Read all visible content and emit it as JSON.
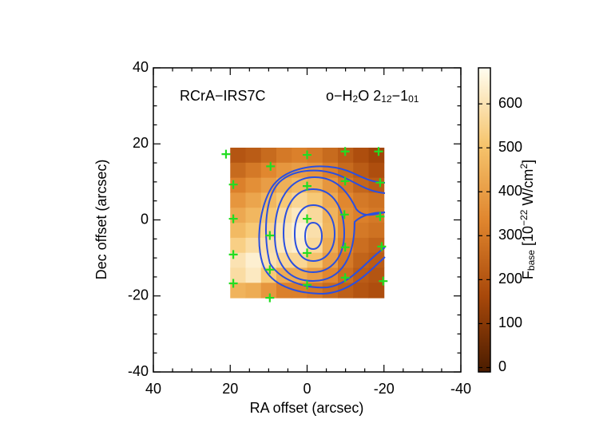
{
  "chart_data": {
    "type": "heatmap",
    "xlabel": "RA offset (arcsec)",
    "ylabel": "Dec offset (arcsec)",
    "source_label": "RCrA−IRS7C",
    "line_label_parts": [
      "o−H",
      "2",
      "O 2",
      "12",
      "−1",
      "01"
    ],
    "colorbar_label_parts": [
      "F",
      "base",
      " [10",
      "−22",
      " W/cm",
      "2",
      "]"
    ],
    "xlim": [
      40,
      -40
    ],
    "ylim": [
      -40,
      40
    ],
    "xticks": [
      40,
      20,
      0,
      -20,
      -40
    ],
    "yticks": [
      -40,
      -20,
      0,
      20,
      40
    ],
    "x_extent": [
      20,
      -20
    ],
    "y_extent": [
      19,
      -20.5
    ],
    "z": [
      [
        200,
        220,
        260,
        300,
        320,
        300,
        260,
        220,
        180,
        150
      ],
      [
        260,
        300,
        340,
        380,
        400,
        380,
        320,
        260,
        220,
        180
      ],
      [
        320,
        360,
        400,
        450,
        480,
        450,
        380,
        300,
        250,
        220
      ],
      [
        380,
        420,
        470,
        520,
        560,
        520,
        430,
        340,
        300,
        280
      ],
      [
        430,
        470,
        520,
        580,
        620,
        570,
        460,
        360,
        320,
        300
      ],
      [
        480,
        520,
        560,
        610,
        650,
        590,
        470,
        360,
        300,
        280
      ],
      [
        540,
        580,
        590,
        620,
        640,
        570,
        440,
        330,
        270,
        240
      ],
      [
        600,
        640,
        600,
        560,
        560,
        500,
        400,
        300,
        240,
        220
      ],
      [
        580,
        620,
        520,
        440,
        440,
        400,
        340,
        270,
        220,
        200
      ],
      [
        460,
        440,
        380,
        320,
        320,
        300,
        260,
        230,
        200,
        180
      ]
    ],
    "clim": [
      -10,
      682
    ],
    "cticks": [
      0,
      100,
      200,
      300,
      400,
      500,
      600
    ],
    "colormap": [
      "#4a1c00",
      "#a8480a",
      "#e0862e",
      "#f6c56e",
      "#fffdf0"
    ],
    "points": {
      "color": "#22dd22",
      "x": [
        21.1,
        9.5,
        0,
        -9.9,
        -18.6,
        19.2,
        0,
        -9.9,
        -19,
        19.2,
        9.7,
        0,
        -9.7,
        -19,
        19.2,
        9.7,
        0,
        -9.9,
        -19.4,
        19.2,
        9.7,
        0,
        -9.9,
        -19.8
      ],
      "y": [
        17.3,
        14.1,
        17.1,
        18,
        18,
        9.3,
        8.9,
        10.2,
        9.8,
        0.3,
        -4.1,
        0.3,
        1.4,
        0.9,
        -9.1,
        -13.1,
        -8.7,
        -7.2,
        -7.0,
        -16.7,
        -20.5,
        -17.1,
        -15.2,
        -16.1
      ]
    }
  }
}
